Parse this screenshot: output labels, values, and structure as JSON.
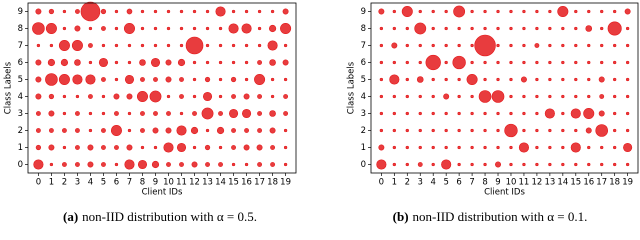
{
  "chart_data": [
    {
      "type": "bubble_matrix",
      "xlabel": "Client IDs",
      "ylabel": "Class Labels",
      "caption_label": "(a)",
      "caption": "non-IID distribution with α = 0.5.",
      "color": "#e41a1c",
      "x": [
        0,
        1,
        2,
        3,
        4,
        5,
        6,
        7,
        8,
        9,
        10,
        11,
        12,
        13,
        14,
        15,
        16,
        17,
        18,
        19
      ],
      "y": [
        0,
        1,
        2,
        3,
        4,
        5,
        6,
        7,
        8,
        9
      ],
      "xlim": [
        -0.8,
        19.8
      ],
      "ylim": [
        -0.5,
        9.5
      ],
      "xticks": [
        0,
        1,
        2,
        3,
        4,
        5,
        6,
        7,
        8,
        9,
        10,
        11,
        12,
        13,
        14,
        15,
        16,
        17,
        18,
        19
      ],
      "yticks": [
        0,
        1,
        2,
        3,
        4,
        5,
        6,
        7,
        8,
        9
      ],
      "sizes": [
        [
          25,
          2,
          5,
          5,
          8,
          5,
          2,
          25,
          20,
          12,
          5,
          5,
          8,
          5,
          5,
          2,
          2,
          5,
          5,
          2
        ],
        [
          6,
          8,
          2,
          5,
          8,
          5,
          5,
          8,
          2,
          2,
          25,
          20,
          2,
          6,
          2,
          5,
          8,
          8,
          5,
          2
        ],
        [
          5,
          5,
          5,
          5,
          2,
          5,
          30,
          2,
          5,
          8,
          8,
          25,
          12,
          2,
          12,
          5,
          5,
          5,
          8,
          2
        ],
        [
          5,
          8,
          2,
          5,
          2,
          2,
          5,
          2,
          5,
          5,
          5,
          2,
          5,
          35,
          5,
          20,
          20,
          5,
          10,
          5
        ],
        [
          8,
          6,
          2,
          2,
          5,
          2,
          8,
          8,
          30,
          35,
          2,
          5,
          2,
          20,
          2,
          5,
          8,
          5,
          2,
          5
        ],
        [
          8,
          40,
          30,
          25,
          25,
          5,
          2,
          20,
          5,
          5,
          8,
          5,
          2,
          6,
          2,
          6,
          2,
          30,
          2,
          2
        ],
        [
          8,
          12,
          12,
          10,
          2,
          20,
          2,
          2,
          10,
          20,
          8,
          12,
          2,
          2,
          2,
          2,
          2,
          5,
          10,
          8
        ],
        [
          2,
          2,
          30,
          30,
          5,
          2,
          2,
          2,
          2,
          2,
          2,
          2,
          80,
          2,
          2,
          2,
          2,
          2,
          25,
          2
        ],
        [
          40,
          30,
          2,
          8,
          2,
          5,
          2,
          30,
          2,
          2,
          2,
          2,
          2,
          2,
          2,
          25,
          25,
          2,
          12,
          30
        ],
        [
          8,
          6,
          2,
          5,
          100,
          6,
          2,
          7,
          2,
          2,
          2,
          2,
          2,
          2,
          25,
          2,
          2,
          2,
          2,
          8
        ]
      ]
    },
    {
      "type": "bubble_matrix",
      "xlabel": "Client IDs",
      "ylabel": "Class Labels",
      "caption_label": "(b)",
      "caption": "non-IID distribution with α = 0.1.",
      "color": "#e41a1c",
      "x": [
        0,
        1,
        2,
        3,
        4,
        5,
        6,
        7,
        8,
        9,
        10,
        11,
        12,
        13,
        14,
        15,
        16,
        17,
        18,
        19
      ],
      "y": [
        0,
        1,
        2,
        3,
        4,
        5,
        6,
        7,
        8,
        9
      ],
      "xlim": [
        -0.8,
        19.8
      ],
      "ylim": [
        -0.5,
        9.5
      ],
      "xticks": [
        0,
        1,
        2,
        3,
        4,
        5,
        6,
        7,
        8,
        9,
        10,
        11,
        12,
        13,
        14,
        15,
        16,
        17,
        18,
        19
      ],
      "yticks": [
        0,
        1,
        2,
        3,
        4,
        5,
        6,
        7,
        8,
        9
      ],
      "sizes": [
        [
          25,
          2,
          2,
          5,
          2,
          25,
          2,
          2,
          2,
          8,
          2,
          2,
          2,
          2,
          2,
          2,
          2,
          2,
          2,
          2
        ],
        [
          8,
          2,
          2,
          2,
          2,
          2,
          2,
          2,
          2,
          2,
          2,
          25,
          2,
          2,
          2,
          25,
          2,
          2,
          2,
          20
        ],
        [
          2,
          2,
          2,
          2,
          2,
          2,
          2,
          2,
          2,
          2,
          45,
          2,
          2,
          2,
          2,
          2,
          8,
          40,
          2,
          2
        ],
        [
          2,
          2,
          2,
          2,
          2,
          2,
          2,
          2,
          2,
          2,
          2,
          2,
          2,
          25,
          2,
          25,
          30,
          8,
          2,
          2
        ],
        [
          2,
          2,
          2,
          2,
          2,
          8,
          2,
          2,
          40,
          40,
          2,
          2,
          2,
          2,
          2,
          2,
          2,
          5,
          2,
          2
        ],
        [
          2,
          25,
          2,
          10,
          2,
          2,
          2,
          30,
          2,
          2,
          2,
          8,
          2,
          2,
          2,
          2,
          2,
          8,
          2,
          2
        ],
        [
          2,
          2,
          2,
          2,
          60,
          2,
          45,
          2,
          2,
          2,
          2,
          2,
          2,
          2,
          2,
          2,
          2,
          2,
          2,
          2
        ],
        [
          2,
          8,
          2,
          2,
          2,
          2,
          2,
          2,
          120,
          2,
          2,
          2,
          5,
          2,
          2,
          2,
          2,
          2,
          2,
          2
        ],
        [
          2,
          2,
          2,
          35,
          2,
          2,
          2,
          2,
          2,
          2,
          2,
          2,
          2,
          2,
          2,
          2,
          10,
          2,
          50,
          2
        ],
        [
          8,
          2,
          30,
          2,
          2,
          2,
          35,
          2,
          2,
          2,
          2,
          2,
          2,
          2,
          30,
          2,
          2,
          2,
          2,
          8
        ]
      ]
    }
  ]
}
